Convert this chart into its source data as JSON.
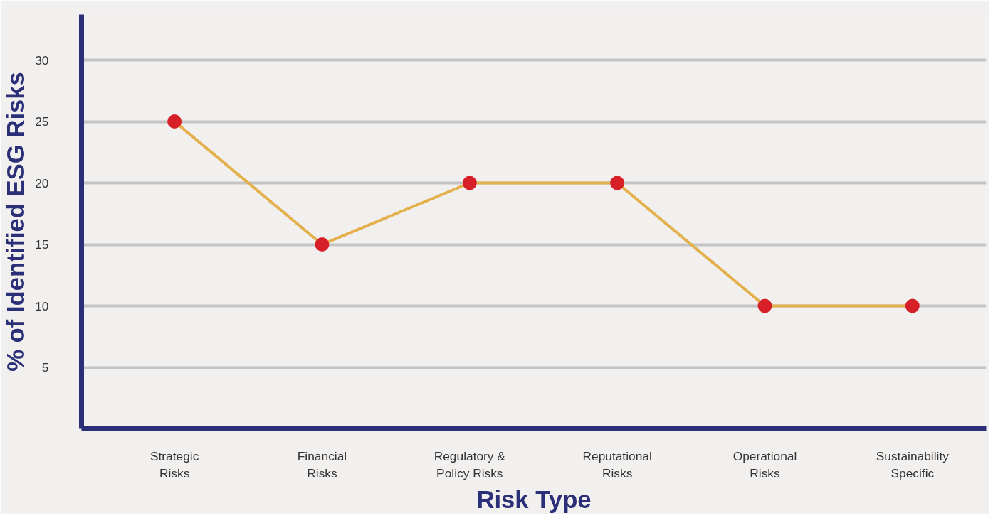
{
  "chart_data": {
    "type": "line",
    "xlabel": "Risk Type",
    "ylabel": "% of Identified ESG Risks",
    "categories": [
      "Strategic\nRisks",
      "Financial\nRisks",
      "Regulatory &\nPolicy Risks",
      "Reputational\nRisks",
      "Operational\nRisks",
      "Sustainability\nSpecific"
    ],
    "series": [
      {
        "color": "#e3b04b",
        "colors": [
          "#d71f27",
          "#d71f27",
          "#d71f27",
          "#d71f27",
          "#d71f27",
          "#d71f27"
        ],
        "values": [
          25,
          15,
          20,
          20,
          10,
          10
        ]
      }
    ],
    "marker": "circle",
    "line_style": "solid",
    "ylim": [
      0,
      33.7
    ],
    "yticks": [
      5,
      10,
      15,
      20,
      25,
      30
    ],
    "grid": "y"
  }
}
